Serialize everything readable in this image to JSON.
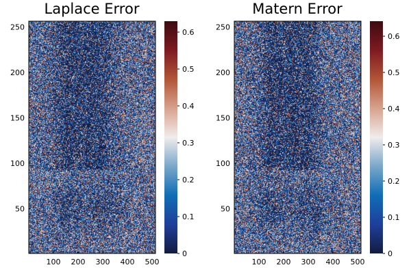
{
  "chart_data": [
    {
      "type": "heatmap",
      "title": "Laplace Error",
      "xlabel": "",
      "ylabel": "",
      "xlim": [
        1,
        512
      ],
      "ylim": [
        1,
        256
      ],
      "x_ticks": [
        "100",
        "200",
        "300",
        "400",
        "500"
      ],
      "y_ticks": [
        "50",
        "100",
        "150",
        "200",
        "250"
      ],
      "colorbar": {
        "range": [
          0,
          0.63
        ],
        "ticks": [
          "0",
          "0.1",
          "0.2",
          "0.3",
          "0.4",
          "0.5",
          "0.6"
        ]
      },
      "grid": false,
      "colormap": "balance"
    },
    {
      "type": "heatmap",
      "title": "Matern Error",
      "xlabel": "",
      "ylabel": "",
      "xlim": [
        1,
        512
      ],
      "ylim": [
        1,
        256
      ],
      "x_ticks": [
        "100",
        "200",
        "300",
        "400",
        "500"
      ],
      "y_ticks": [
        "50",
        "100",
        "150",
        "200",
        "250"
      ],
      "colorbar": {
        "range": [
          0,
          0.645
        ],
        "ticks": [
          "0",
          "0.1",
          "0.2",
          "0.3",
          "0.4",
          "0.5",
          "0.6"
        ]
      },
      "grid": false,
      "colormap": "balance"
    }
  ],
  "colors": {
    "colormap_stops": [
      "#131c3e",
      "#1f3f9a",
      "#0f6db6",
      "#7aa7c9",
      "#f1ecec",
      "#d7a28e",
      "#b25537",
      "#7e1a22",
      "#3d0b12"
    ]
  }
}
